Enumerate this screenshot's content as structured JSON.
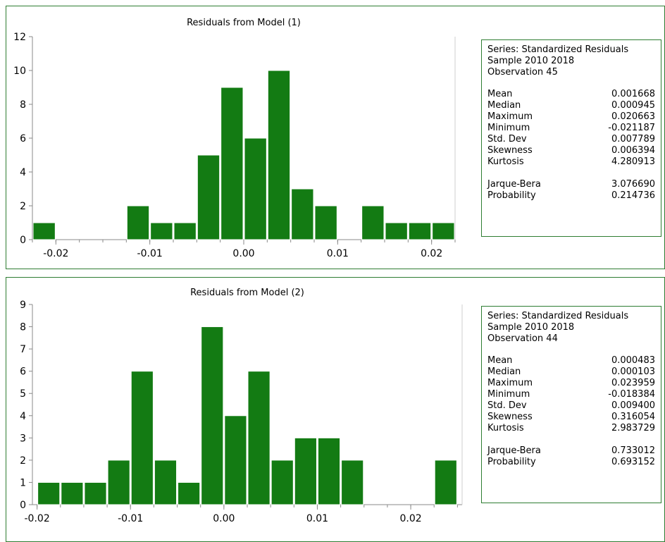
{
  "colors": {
    "bar": "#137b13",
    "bar_edge": "#ffffff",
    "frame": "#2e7d32",
    "axis": "#8a8a8a"
  },
  "chart_data": [
    {
      "type": "bar",
      "title": "Residuals from Model (1)",
      "xlabel": "",
      "ylabel": "",
      "bins": [
        {
          "left": -0.0225,
          "right": -0.02,
          "count": 1
        },
        {
          "left": -0.0125,
          "right": -0.01,
          "count": 2
        },
        {
          "left": -0.01,
          "right": -0.0075,
          "count": 1
        },
        {
          "left": -0.0075,
          "right": -0.005,
          "count": 1
        },
        {
          "left": -0.005,
          "right": -0.0025,
          "count": 5
        },
        {
          "left": -0.0025,
          "right": 0.0,
          "count": 9
        },
        {
          "left": 0.0,
          "right": 0.0025,
          "count": 6
        },
        {
          "left": 0.0025,
          "right": 0.005,
          "count": 10
        },
        {
          "left": 0.005,
          "right": 0.0075,
          "count": 3
        },
        {
          "left": 0.0075,
          "right": 0.01,
          "count": 2
        },
        {
          "left": 0.0125,
          "right": 0.015,
          "count": 2
        },
        {
          "left": 0.015,
          "right": 0.0175,
          "count": 1
        },
        {
          "left": 0.0175,
          "right": 0.02,
          "count": 1
        },
        {
          "left": 0.02,
          "right": 0.0225,
          "count": 1
        }
      ],
      "xlim": [
        -0.0225,
        0.0225
      ],
      "ylim": [
        0,
        12
      ],
      "x_ticks": [
        -0.02,
        -0.01,
        0.0,
        0.01,
        0.02
      ],
      "x_tick_labels": [
        "-0.02",
        "-0.01",
        "0.00",
        "0.01",
        "0.02"
      ],
      "y_ticks": [
        0,
        2,
        4,
        6,
        8,
        10,
        12
      ],
      "y_tick_labels": [
        "0",
        "2",
        "4",
        "6",
        "8",
        "10",
        "12"
      ],
      "grid": false,
      "legend": "none"
    },
    {
      "type": "bar",
      "title": "Residuals from Model (2)",
      "xlabel": "",
      "ylabel": "",
      "bins": [
        {
          "left": -0.02,
          "right": -0.0175,
          "count": 1
        },
        {
          "left": -0.0175,
          "right": -0.015,
          "count": 1
        },
        {
          "left": -0.015,
          "right": -0.0125,
          "count": 1
        },
        {
          "left": -0.0125,
          "right": -0.01,
          "count": 2
        },
        {
          "left": -0.01,
          "right": -0.0075,
          "count": 6
        },
        {
          "left": -0.0075,
          "right": -0.005,
          "count": 2
        },
        {
          "left": -0.005,
          "right": -0.0025,
          "count": 1
        },
        {
          "left": -0.0025,
          "right": 0.0,
          "count": 8
        },
        {
          "left": 0.0,
          "right": 0.0025,
          "count": 4
        },
        {
          "left": 0.0025,
          "right": 0.005,
          "count": 6
        },
        {
          "left": 0.005,
          "right": 0.0075,
          "count": 2
        },
        {
          "left": 0.0075,
          "right": 0.01,
          "count": 3
        },
        {
          "left": 0.01,
          "right": 0.0125,
          "count": 3
        },
        {
          "left": 0.0125,
          "right": 0.015,
          "count": 2
        },
        {
          "left": 0.0225,
          "right": 0.025,
          "count": 2
        }
      ],
      "xlim": [
        -0.0205,
        0.0255
      ],
      "ylim": [
        0,
        9
      ],
      "x_ticks": [
        -0.02,
        -0.01,
        0.0,
        0.01,
        0.02
      ],
      "x_tick_labels": [
        "-0.02",
        "-0.01",
        "0.00",
        "0.01",
        "0.02"
      ],
      "y_ticks": [
        0,
        1,
        2,
        3,
        4,
        5,
        6,
        7,
        8,
        9
      ],
      "y_tick_labels": [
        "0",
        "1",
        "2",
        "3",
        "4",
        "5",
        "6",
        "7",
        "8",
        "9"
      ],
      "grid": false,
      "legend": "none"
    }
  ],
  "stats": [
    {
      "series": "Series: Standardized Residuals",
      "sample": "Sample 2010  2018",
      "observations": "Observation 45",
      "rows": [
        {
          "label": "Mean",
          "value": "0.001668"
        },
        {
          "label": "Median",
          "value": "0.000945"
        },
        {
          "label": "Maximum",
          "value": "0.020663"
        },
        {
          "label": "Minimum",
          "value": "-0.021187"
        },
        {
          "label": "Std. Dev",
          "value": "0.007789"
        },
        {
          "label": "Skewness",
          "value": "0.006394"
        },
        {
          "label": "Kurtosis",
          "value": "4.280913"
        }
      ],
      "tests": [
        {
          "label": "Jarque-Bera",
          "value": "3.076690"
        },
        {
          "label": "Probability",
          "value": "0.214736"
        }
      ]
    },
    {
      "series": "Series: Standardized Residuals",
      "sample": "Sample 2010  2018",
      "observations": "Observation 44",
      "rows": [
        {
          "label": "Mean",
          "value": "0.000483"
        },
        {
          "label": "Median",
          "value": "0.000103"
        },
        {
          "label": "Maximum",
          "value": "0.023959"
        },
        {
          "label": "Minimum",
          "value": "-0.018384"
        },
        {
          "label": "Std. Dev",
          "value": "0.009400"
        },
        {
          "label": "Skewness",
          "value": "0.316054"
        },
        {
          "label": "Kurtosis",
          "value": "2.983729"
        }
      ],
      "tests": [
        {
          "label": "Jarque-Bera",
          "value": "0.733012"
        },
        {
          "label": "Probability",
          "value": "0.693152"
        }
      ]
    }
  ]
}
